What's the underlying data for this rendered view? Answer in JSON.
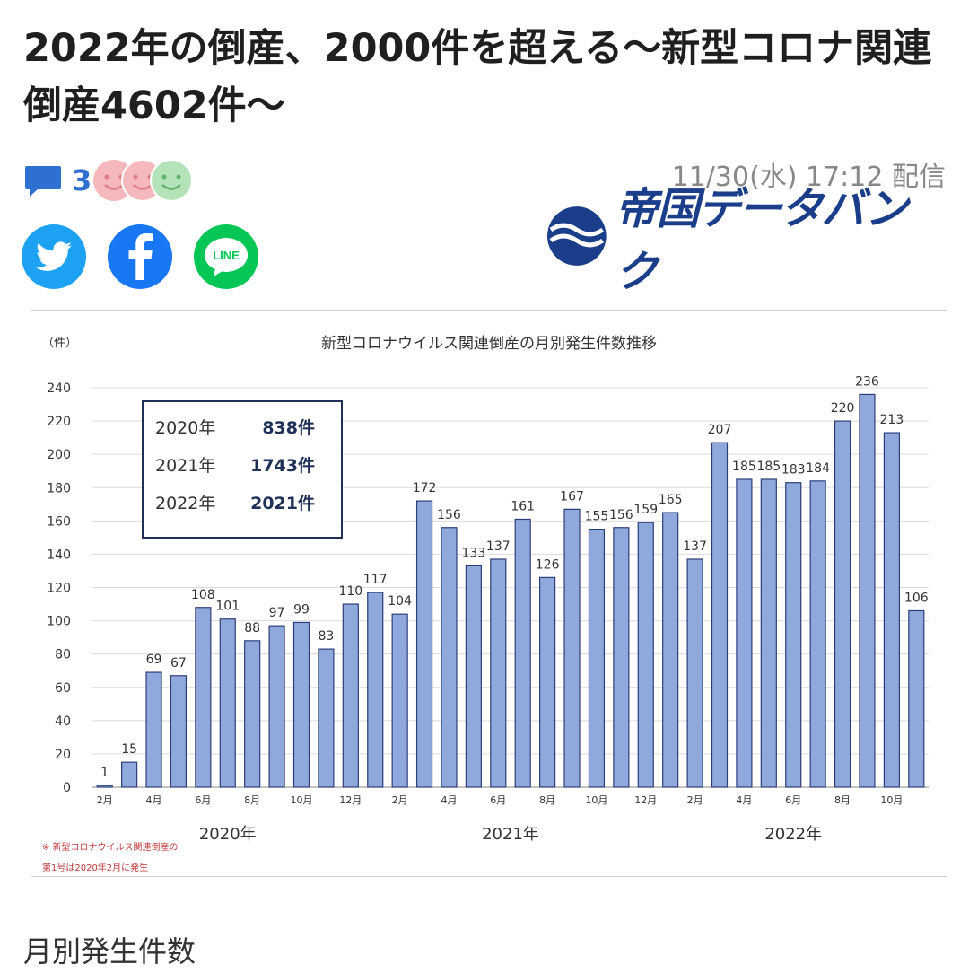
{
  "article": {
    "title": "2022年の倒産、2000件を超える〜新型コロナ関連倒産4602件〜",
    "comment_count": "3",
    "date": "11/30(水) 17:12 配信",
    "publisher": "帝国データバンク",
    "caption": "月別発生件数"
  },
  "share": {
    "line_label": "LINE"
  },
  "icons": [
    "comment-icon",
    "smile-face-icon",
    "twitter-icon",
    "facebook-icon",
    "line-icon",
    "publisher-logo-icon"
  ],
  "colors": {
    "accent": "#2f6fd1",
    "twitter": "#1da1f2",
    "facebook": "#1877f2",
    "line": "#06c755",
    "bar": "#8fa9dc",
    "brand": "#1a3e8a"
  },
  "chart_data": {
    "type": "bar",
    "title": "新型コロナウイルス関連倒産の月別発生件数推移",
    "ylabel": "（件）",
    "ylim": [
      0,
      240
    ],
    "yticks": [
      0,
      20,
      40,
      60,
      80,
      100,
      120,
      140,
      160,
      180,
      200,
      220,
      240
    ],
    "grid": true,
    "categories": [
      "2020-02",
      "2020-03",
      "2020-04",
      "2020-05",
      "2020-06",
      "2020-07",
      "2020-08",
      "2020-09",
      "2020-10",
      "2020-11",
      "2020-12",
      "2021-01",
      "2021-02",
      "2021-03",
      "2021-04",
      "2021-05",
      "2021-06",
      "2021-07",
      "2021-08",
      "2021-09",
      "2021-10",
      "2021-11",
      "2021-12",
      "2022-01",
      "2022-02",
      "2022-03",
      "2022-04",
      "2022-05",
      "2022-06",
      "2022-07",
      "2022-08",
      "2022-09",
      "2022-10",
      "2022-11"
    ],
    "tick_labels": [
      "2月",
      "",
      "4月",
      "",
      "6月",
      "",
      "8月",
      "",
      "10月",
      "",
      "12月",
      "",
      "2月",
      "",
      "4月",
      "",
      "6月",
      "",
      "8月",
      "",
      "10月",
      "",
      "12月",
      "",
      "2月",
      "",
      "4月",
      "",
      "6月",
      "",
      "8月",
      "",
      "10月",
      ""
    ],
    "values": [
      1,
      15,
      69,
      67,
      108,
      101,
      88,
      97,
      99,
      83,
      110,
      117,
      104,
      172,
      156,
      133,
      137,
      161,
      126,
      167,
      155,
      156,
      159,
      165,
      137,
      207,
      185,
      185,
      183,
      184,
      220,
      236,
      213,
      106
    ],
    "year_labels": [
      "2020年",
      "2021年",
      "2022年"
    ],
    "summary": [
      {
        "year": "2020年",
        "count": "838件"
      },
      {
        "year": "2021年",
        "count": "1743件"
      },
      {
        "year": "2022年",
        "count": "2021件"
      }
    ],
    "note": [
      "※ 新型コロナウイルス関連倒産の",
      "第1号は2020年2月に発生"
    ]
  }
}
